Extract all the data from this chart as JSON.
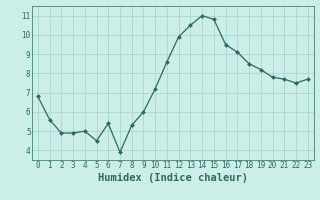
{
  "x": [
    0,
    1,
    2,
    3,
    4,
    5,
    6,
    7,
    8,
    9,
    10,
    11,
    12,
    13,
    14,
    15,
    16,
    17,
    18,
    19,
    20,
    21,
    22,
    23
  ],
  "y": [
    6.8,
    5.6,
    4.9,
    4.9,
    5.0,
    4.5,
    5.4,
    3.9,
    5.3,
    6.0,
    7.2,
    8.6,
    9.9,
    10.5,
    11.0,
    10.8,
    9.5,
    9.1,
    8.5,
    8.2,
    7.8,
    7.7,
    7.5,
    7.7
  ],
  "line_color": "#2a6b5e",
  "marker": "D",
  "marker_size": 2.0,
  "bg_color": "#cceee8",
  "grid_color": "#aad8d2",
  "xlabel": "Humidex (Indice chaleur)",
  "ylabel": "",
  "xlim": [
    -0.5,
    23.5
  ],
  "ylim": [
    3.5,
    11.5
  ],
  "yticks": [
    4,
    5,
    6,
    7,
    8,
    9,
    10,
    11
  ],
  "xticks": [
    0,
    1,
    2,
    3,
    4,
    5,
    6,
    7,
    8,
    9,
    10,
    11,
    12,
    13,
    14,
    15,
    16,
    17,
    18,
    19,
    20,
    21,
    22,
    23
  ],
  "tick_fontsize": 5.5,
  "xlabel_fontsize": 7.5,
  "axis_color": "#2a6b5e"
}
